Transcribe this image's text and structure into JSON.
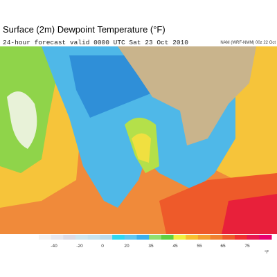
{
  "header": {
    "title": "Surface (2m) Dewpoint Temperature (°F)",
    "subtitle": "24-hour forecast valid 0000 UTC Sat 23 Oct 2010",
    "model": "NAM (WRF-NMM) 00z 22 Oct"
  },
  "legend": {
    "ticks": [
      -40,
      -20,
      0,
      20,
      35,
      45,
      55,
      65,
      75
    ],
    "unit": "°F"
  }
}
